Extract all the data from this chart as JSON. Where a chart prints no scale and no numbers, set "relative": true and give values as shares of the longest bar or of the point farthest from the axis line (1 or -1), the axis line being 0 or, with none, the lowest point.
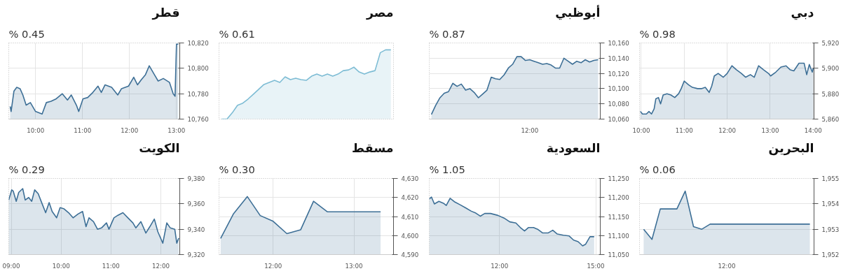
{
  "chart_data": [
    {
      "type": "area",
      "title": "قطر",
      "annotations": [
        "% 0.45"
      ],
      "grid": true,
      "xlim": [
        9.43,
        13.07
      ],
      "ylim": [
        10760,
        10820
      ],
      "xticks": [
        {
          "value": 10,
          "label": "10:00"
        },
        {
          "value": 11,
          "label": "11:00"
        },
        {
          "value": 12,
          "label": "12:00"
        },
        {
          "value": 13,
          "label": "13:00"
        }
      ],
      "yticks": [
        {
          "value": 10760,
          "label": "10,760"
        },
        {
          "value": 10780,
          "label": "10,780"
        },
        {
          "value": 10800,
          "label": "10,800"
        },
        {
          "value": 10820,
          "label": "10,820"
        }
      ],
      "series": [
        {
          "color": "#3d6f96",
          "x": [
            9.46,
            9.48,
            9.54,
            9.6,
            9.67,
            9.73,
            9.8,
            9.89,
            10.0,
            10.14,
            10.23,
            10.33,
            10.44,
            10.57,
            10.68,
            10.76,
            10.87,
            10.92,
            11.01,
            11.11,
            11.22,
            11.33,
            11.4,
            11.48,
            11.62,
            11.75,
            11.83,
            11.98,
            12.09,
            12.17,
            12.25,
            12.34,
            12.42,
            12.53,
            12.61,
            12.72,
            12.85,
            12.93,
            12.97,
            13.0,
            13.04
          ],
          "values": [
            10770,
            10766,
            10782,
            10785,
            10784,
            10779,
            10771,
            10773,
            10766,
            10764,
            10773,
            10774,
            10776,
            10780,
            10775,
            10779,
            10771,
            10766,
            10776,
            10777,
            10781,
            10786,
            10781,
            10787,
            10785,
            10779,
            10784,
            10786,
            10793,
            10787,
            10791,
            10795,
            10802,
            10795,
            10790,
            10792,
            10789,
            10780,
            10778,
            10819,
            10819
          ]
        }
      ]
    },
    {
      "type": "area",
      "title": "مصر",
      "annotations": [
        "% 0.61"
      ],
      "relative": true,
      "categories": [
        null,
        null,
        null,
        null,
        null,
        null,
        null,
        null,
        null,
        null,
        null,
        null,
        null,
        null,
        null,
        null,
        null,
        null,
        null,
        null,
        null,
        null,
        null,
        null,
        null,
        null,
        null,
        null,
        null,
        null,
        null,
        null,
        null
      ],
      "series": [
        {
          "color": "#7dbcd4",
          "values": [
            0,
            0,
            0.09,
            0.2,
            0.23,
            0.29,
            0.36,
            0.43,
            0.5,
            0.53,
            0.56,
            0.53,
            0.61,
            0.57,
            0.59,
            0.57,
            0.56,
            0.62,
            0.65,
            0.62,
            0.65,
            0.62,
            0.65,
            0.7,
            0.71,
            0.75,
            0.68,
            0.65,
            0.68,
            0.7,
            0.96,
            1.0,
            1.0
          ]
        }
      ]
    },
    {
      "type": "area",
      "title": "أبوظبي",
      "annotations": [
        "% 0.87"
      ],
      "grid": "y",
      "ylim": [
        10060,
        10160
      ],
      "categories": [
        null,
        null,
        null,
        null,
        null,
        null,
        null,
        null,
        null,
        null,
        null,
        null,
        null,
        null,
        null,
        null,
        null,
        null,
        null,
        null,
        null,
        null,
        null,
        "12:00",
        null,
        null,
        null,
        null,
        null,
        null,
        null,
        null,
        null,
        null,
        null,
        null,
        null,
        null,
        null,
        null
      ],
      "yticks": [
        {
          "value": 10060,
          "label": "10,060"
        },
        {
          "value": 10080,
          "label": "10,080"
        },
        {
          "value": 10100,
          "label": "10,100"
        },
        {
          "value": 10120,
          "label": "10,120"
        },
        {
          "value": 10140,
          "label": "10,140"
        },
        {
          "value": 10160,
          "label": "10,160"
        }
      ],
      "series": [
        {
          "color": "#3d6f96",
          "values": [
            10066,
            10078,
            10088,
            10094,
            10096,
            10107,
            10103,
            10106,
            10098,
            10100,
            10095,
            10088,
            10093,
            10098,
            10115,
            10113,
            10112,
            10118,
            10127,
            10132,
            10142,
            10142,
            10137,
            10138,
            10136,
            10134,
            10132,
            10133,
            10131,
            10127,
            10127,
            10140,
            10136,
            10132,
            10136,
            10134,
            10138,
            10135,
            10137,
            10138
          ]
        }
      ]
    },
    {
      "type": "area",
      "title": "دبي",
      "annotations": [
        "% 0.98"
      ],
      "grid": true,
      "xlim": [
        9.96,
        14.02
      ],
      "ylim": [
        5860,
        5920
      ],
      "xticks": [
        {
          "value": 10,
          "label": "10:00"
        },
        {
          "value": 11,
          "label": "11:00"
        },
        {
          "value": 12,
          "label": "12:00"
        },
        {
          "value": 13,
          "label": "13:00"
        },
        {
          "value": 14,
          "label": "14:00"
        }
      ],
      "yticks": [
        {
          "value": 5860,
          "label": "5,860"
        },
        {
          "value": 5880,
          "label": "5,880"
        },
        {
          "value": 5900,
          "label": "5,900"
        },
        {
          "value": 5920,
          "label": "5,920"
        }
      ],
      "series": [
        {
          "color": "#3d6f96",
          "x": [
            9.98,
            10.03,
            10.12,
            10.18,
            10.24,
            10.3,
            10.34,
            10.4,
            10.45,
            10.51,
            10.6,
            10.69,
            10.78,
            10.87,
            10.93,
            11.0,
            11.1,
            11.19,
            11.31,
            11.4,
            11.49,
            11.58,
            11.64,
            11.7,
            11.79,
            11.91,
            12.0,
            12.11,
            12.21,
            12.33,
            12.43,
            12.54,
            12.63,
            12.73,
            12.84,
            12.96,
            13.01,
            13.13,
            13.25,
            13.37,
            13.46,
            13.55,
            13.67,
            13.79,
            13.85,
            13.91,
            13.98,
            14.0
          ],
          "values": [
            5866,
            5864,
            5864,
            5866,
            5864,
            5868,
            5876,
            5877,
            5872,
            5879,
            5880,
            5879,
            5877,
            5880,
            5884,
            5890,
            5887,
            5885,
            5884,
            5884,
            5885,
            5881,
            5886,
            5894,
            5896,
            5893,
            5896,
            5902,
            5899,
            5896,
            5893,
            5895,
            5893,
            5902,
            5899,
            5896,
            5894,
            5897,
            5901,
            5902,
            5899,
            5898,
            5904,
            5904,
            5895,
            5903,
            5897,
            5900
          ]
        }
      ]
    },
    {
      "type": "area",
      "title": "الكويت",
      "annotations": [
        "% 0.29"
      ],
      "grid": true,
      "xlim": [
        8.95,
        12.38
      ],
      "ylim": [
        9320,
        9380
      ],
      "xticks": [
        {
          "value": 9,
          "label": "09:00"
        },
        {
          "value": 10,
          "label": "10:00"
        },
        {
          "value": 11,
          "label": "11:00"
        },
        {
          "value": 12,
          "label": "12:00"
        }
      ],
      "yticks": [
        {
          "value": 9320,
          "label": "9,320"
        },
        {
          "value": 9340,
          "label": "9,340"
        },
        {
          "value": 9360,
          "label": "9,360"
        },
        {
          "value": 9380,
          "label": "9,380"
        }
      ],
      "series": [
        {
          "color": "#3d6f96",
          "x": [
            8.95,
            9.01,
            9.04,
            9.1,
            9.15,
            9.23,
            9.28,
            9.35,
            9.41,
            9.47,
            9.54,
            9.62,
            9.69,
            9.76,
            9.82,
            9.91,
            9.98,
            10.06,
            10.15,
            10.24,
            10.34,
            10.43,
            10.5,
            10.56,
            10.65,
            10.73,
            10.81,
            10.91,
            10.96,
            11.06,
            11.14,
            11.24,
            11.34,
            11.44,
            11.5,
            11.6,
            11.7,
            11.78,
            11.87,
            11.94,
            12.04,
            12.12,
            12.19,
            12.28,
            12.32,
            12.36
          ],
          "values": [
            9363,
            9371,
            9370,
            9362,
            9369,
            9372,
            9363,
            9365,
            9362,
            9371,
            9368,
            9360,
            9353,
            9361,
            9354,
            9349,
            9357,
            9356,
            9353,
            9349,
            9352,
            9354,
            9342,
            9349,
            9346,
            9340,
            9341,
            9345,
            9340,
            9349,
            9351,
            9353,
            9349,
            9345,
            9341,
            9346,
            9337,
            9342,
            9348,
            9338,
            9329,
            9345,
            9341,
            9340,
            9329,
            9333
          ]
        }
      ]
    },
    {
      "type": "area",
      "title": "مسقط",
      "annotations": [
        "% 0.30"
      ],
      "grid": true,
      "xlim": [
        11.33,
        13.49
      ],
      "ylim": [
        4590,
        4630
      ],
      "xticks": [
        {
          "value": 12,
          "label": "12:00"
        },
        {
          "value": 13,
          "label": "13:00"
        }
      ],
      "yticks": [
        {
          "value": 4590,
          "label": "4,590"
        },
        {
          "value": 4600,
          "label": "4,600"
        },
        {
          "value": 4610,
          "label": "4,610"
        },
        {
          "value": 4620,
          "label": "4,620"
        },
        {
          "value": 4630,
          "label": "4,630"
        }
      ],
      "series": [
        {
          "color": "#3d6f96",
          "x": [
            11.35,
            11.51,
            11.68,
            11.84,
            12.0,
            12.17,
            12.34,
            12.5,
            12.67,
            13.33
          ],
          "values": [
            4598.5,
            4611.5,
            4620.5,
            4610.5,
            4607.5,
            4601,
            4603,
            4618,
            4612.5,
            4612.5
          ]
        }
      ]
    },
    {
      "type": "area",
      "title": "السعودية",
      "annotations": [
        "% 1.05"
      ],
      "grid": true,
      "xlim": [
        9.81,
        15.14
      ],
      "ylim": [
        11050,
        11250
      ],
      "xticks": [
        {
          "value": 12,
          "label": "12:00"
        },
        {
          "value": 15,
          "label": "15:00"
        }
      ],
      "yticks": [
        {
          "value": 11050,
          "label": "11,050"
        },
        {
          "value": 11100,
          "label": "11,100"
        },
        {
          "value": 11150,
          "label": "11,150"
        },
        {
          "value": 11200,
          "label": "11,200"
        },
        {
          "value": 11250,
          "label": "11,250"
        }
      ],
      "series": [
        {
          "color": "#3d6f96",
          "x": [
            9.81,
            9.88,
            9.97,
            10.11,
            10.25,
            10.34,
            10.46,
            10.61,
            10.77,
            10.94,
            11.12,
            11.26,
            11.4,
            11.54,
            11.72,
            11.95,
            12.14,
            12.32,
            12.51,
            12.65,
            12.78,
            12.9,
            13.06,
            13.2,
            13.34,
            13.52,
            13.66,
            13.8,
            13.99,
            14.17,
            14.31,
            14.45,
            14.59,
            14.68,
            14.82,
            14.95
          ],
          "values": [
            11196,
            11201,
            11183,
            11190,
            11185,
            11179,
            11198,
            11188,
            11181,
            11173,
            11164,
            11159,
            11151,
            11158,
            11158,
            11153,
            11146,
            11136,
            11133,
            11121,
            11112,
            11121,
            11121,
            11116,
            11107,
            11107,
            11114,
            11104,
            11101,
            11099,
            11088,
            11084,
            11073,
            11077,
            11097,
            11097
          ]
        }
      ]
    },
    {
      "type": "area",
      "title": "البحرين",
      "annotations": [
        "% 0.06"
      ],
      "grid": "y",
      "ylim": [
        1952,
        1955
      ],
      "categories": [
        null,
        null,
        null,
        null,
        null,
        null,
        null,
        null,
        null,
        null,
        "12:00",
        null,
        null,
        null,
        null,
        null,
        null,
        null,
        null,
        null,
        null
      ],
      "yticks": [
        {
          "value": 1952,
          "label": "1,952"
        },
        {
          "value": 1953,
          "label": "1,953"
        },
        {
          "value": 1954,
          "label": "1,954"
        },
        {
          "value": 1955,
          "label": "1,955"
        }
      ],
      "series": [
        {
          "color": "#3d6f96",
          "values": [
            1953.0,
            1952.6,
            1953.8,
            1953.8,
            1953.8,
            1954.5,
            1953.1,
            1953.0,
            1953.2,
            1953.2,
            1953.2,
            1953.2,
            1953.2,
            1953.2,
            1953.2,
            1953.2,
            1953.2,
            1953.2,
            1953.2,
            1953.2,
            1953.2
          ]
        }
      ]
    }
  ]
}
